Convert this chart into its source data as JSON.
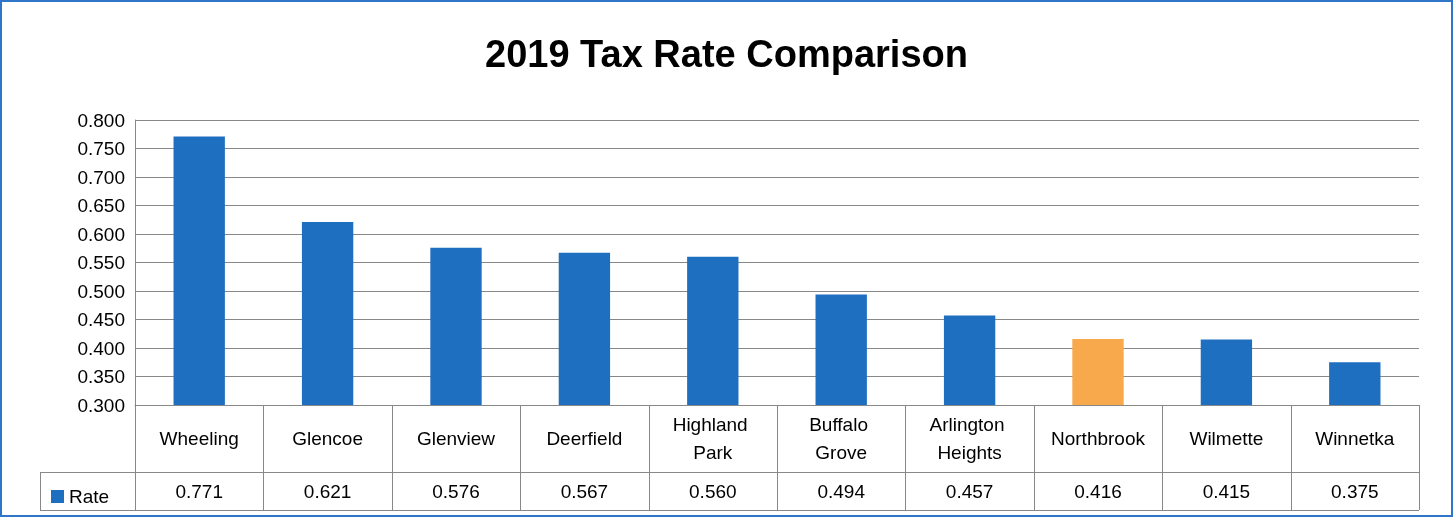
{
  "chart_data": {
    "type": "bar",
    "title": "2019 Tax Rate Comparison",
    "categories": [
      "Wheeling",
      "Glencoe",
      "Glenview",
      "Deerfield",
      "Highland Park",
      "Buffalo Grove",
      "Arlington Heights",
      "Northbrook",
      "Wilmette",
      "Winnetka"
    ],
    "series": [
      {
        "name": "Rate",
        "color": "#1f6fc0",
        "colors": [
          "#1f6fc0",
          "#1f6fc0",
          "#1f6fc0",
          "#1f6fc0",
          "#1f6fc0",
          "#1f6fc0",
          "#1f6fc0",
          "#f7a94c",
          "#1f6fc0",
          "#1f6fc0"
        ],
        "values": [
          0.771,
          0.621,
          0.576,
          0.567,
          0.56,
          0.494,
          0.457,
          0.416,
          0.415,
          0.375
        ]
      }
    ],
    "value_labels": [
      "0.771",
      "0.621",
      "0.576",
      "0.567",
      "0.560",
      "0.494",
      "0.457",
      "0.416",
      "0.415",
      "0.375"
    ],
    "ylim": [
      0.3,
      0.8
    ],
    "yticks": [
      {
        "value": 0.3,
        "label": "0.300"
      },
      {
        "value": 0.35,
        "label": "0.350"
      },
      {
        "value": 0.4,
        "label": "0.400"
      },
      {
        "value": 0.45,
        "label": "0.450"
      },
      {
        "value": 0.5,
        "label": "0.500"
      },
      {
        "value": 0.55,
        "label": "0.550"
      },
      {
        "value": 0.6,
        "label": "0.600"
      },
      {
        "value": 0.65,
        "label": "0.650"
      },
      {
        "value": 0.7,
        "label": "0.700"
      },
      {
        "value": 0.75,
        "label": "0.750"
      },
      {
        "value": 0.8,
        "label": "0.800"
      }
    ],
    "grid": "y",
    "legend": "bottom left"
  }
}
